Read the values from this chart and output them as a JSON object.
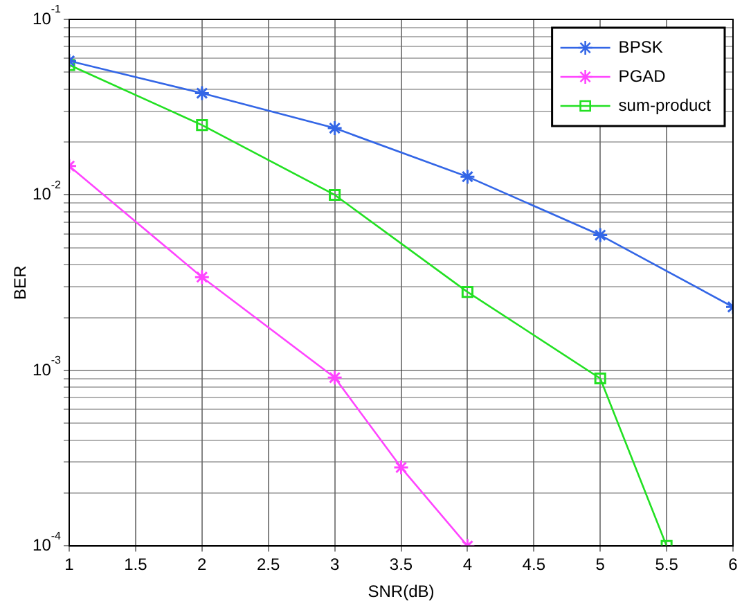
{
  "chart_data": {
    "type": "line",
    "xlabel": "SNR(dB)",
    "ylabel": "BER",
    "log": "y",
    "grid": true,
    "legend": "top right",
    "line_style": "solid",
    "xlim": [
      1,
      6
    ],
    "xticks": [
      1,
      1.5,
      2,
      2.5,
      3,
      3.5,
      4,
      4.5,
      5,
      5.5,
      6
    ],
    "ylim": [
      0.0001,
      0.1
    ],
    "yticks": [
      {
        "value": 0.0001,
        "label": "10$^{-4}$"
      },
      {
        "value": 0.0002,
        "label": null
      },
      {
        "value": 0.0003,
        "label": null
      },
      {
        "value": 0.0004,
        "label": null
      },
      {
        "value": 0.0005,
        "label": null
      },
      {
        "value": 0.0006,
        "label": null
      },
      {
        "value": 0.0007,
        "label": null
      },
      {
        "value": 0.0008,
        "label": null
      },
      {
        "value": 0.0009,
        "label": null
      },
      {
        "value": 0.001,
        "label": "10$^{-3}$"
      },
      {
        "value": 0.002,
        "label": null
      },
      {
        "value": 0.003,
        "label": null
      },
      {
        "value": 0.004,
        "label": null
      },
      {
        "value": 0.005,
        "label": null
      },
      {
        "value": 0.006,
        "label": null
      },
      {
        "value": 0.007,
        "label": null
      },
      {
        "value": 0.008,
        "label": null
      },
      {
        "value": 0.009,
        "label": null
      },
      {
        "value": 0.01,
        "label": "10$^{-2}$"
      },
      {
        "value": 0.02,
        "label": null
      },
      {
        "value": 0.03,
        "label": null
      },
      {
        "value": 0.04,
        "label": null
      },
      {
        "value": 0.05,
        "label": null
      },
      {
        "value": 0.06,
        "label": null
      },
      {
        "value": 0.07,
        "label": null
      },
      {
        "value": 0.08,
        "label": null
      },
      {
        "value": 0.09,
        "label": null
      },
      {
        "value": 0.1,
        "label": "10$^{-1}$"
      }
    ],
    "series": [
      {
        "name": "BPSK",
        "color": "#3366e6",
        "marker": "cross",
        "x": [
          1,
          2,
          3,
          4,
          5,
          6
        ],
        "values": [
          0.058,
          0.038,
          0.024,
          0.0127,
          0.0059,
          0.0023
        ]
      },
      {
        "name": "PGAD",
        "color": "#ff44ff",
        "marker": "cross",
        "x": [
          1,
          2,
          3,
          3.5,
          4
        ],
        "values": [
          0.0146,
          0.0034,
          0.00091,
          0.00028,
          0.0001
        ]
      },
      {
        "name": "sum-product",
        "color": "#22e022",
        "marker": "square",
        "x": [
          1,
          2,
          3,
          4,
          5,
          5.5
        ],
        "values": [
          0.055,
          0.025,
          0.01,
          0.0028,
          0.0009,
          0.0001
        ]
      }
    ]
  }
}
